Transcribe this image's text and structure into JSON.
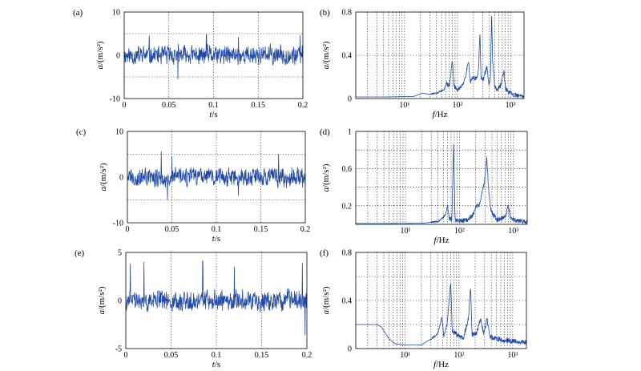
{
  "chart_data": [
    {
      "panel": "(a)",
      "type": "line",
      "xlabel_italic": "t",
      "xlabel_unit": "/s",
      "ylabel_italic": "a",
      "ylabel_unit": "/(m/s²)",
      "xlim": [
        0,
        0.2
      ],
      "ylim": [
        -10,
        10
      ],
      "xticks": [
        0,
        0.05,
        0.1,
        0.15,
        0.2
      ],
      "xtick_labels": [
        "0",
        "0.05",
        "0.1",
        "0.15",
        "0.2"
      ],
      "yticks": [
        -10,
        -5,
        0,
        5,
        10
      ],
      "ytick_labels": [
        "-10",
        "",
        "0",
        "",
        "10"
      ],
      "grid": true,
      "signal": {
        "n_samples": 600,
        "amplitude": 3.2,
        "peaks": [
          [
            0.028,
            4.5
          ],
          [
            0.06,
            -5.5
          ],
          [
            0.092,
            4.8
          ],
          [
            0.128,
            4.2
          ],
          [
            0.197,
            4.6
          ]
        ],
        "seed": 11
      }
    },
    {
      "panel": "(b)",
      "type": "line",
      "xscale": "log",
      "xlabel_italic": "f",
      "xlabel_unit": "/Hz",
      "ylabel_italic": "a",
      "ylabel_unit": "/(m/s²)",
      "xlim": [
        1.2,
        1800
      ],
      "ylim": [
        0,
        0.8
      ],
      "xticks": [
        10,
        100,
        1000
      ],
      "xtick_labels": [
        "10¹",
        "10²",
        "10³"
      ],
      "yticks": [
        0,
        0.4,
        0.8
      ],
      "ytick_labels": [
        "0",
        "0.4",
        "0.8"
      ],
      "grid": true,
      "spectrum": {
        "points": [
          [
            1.2,
            0.015
          ],
          [
            5,
            0.015
          ],
          [
            15,
            0.02
          ],
          [
            22,
            0.05
          ],
          [
            28,
            0.04
          ],
          [
            40,
            0.05
          ],
          [
            55,
            0.08
          ],
          [
            62,
            0.14
          ],
          [
            70,
            0.12
          ],
          [
            80,
            0.35
          ],
          [
            86,
            0.12
          ],
          [
            100,
            0.08
          ],
          [
            120,
            0.12
          ],
          [
            140,
            0.18
          ],
          [
            160,
            0.36
          ],
          [
            175,
            0.15
          ],
          [
            200,
            0.2
          ],
          [
            230,
            0.18
          ],
          [
            250,
            0.28
          ],
          [
            265,
            0.62
          ],
          [
            278,
            0.2
          ],
          [
            300,
            0.16
          ],
          [
            360,
            0.3
          ],
          [
            390,
            0.12
          ],
          [
            420,
            0.2
          ],
          [
            440,
            0.8
          ],
          [
            460,
            0.35
          ],
          [
            500,
            0.12
          ],
          [
            560,
            0.08
          ],
          [
            650,
            0.12
          ],
          [
            750,
            0.26
          ],
          [
            800,
            0.1
          ],
          [
            900,
            0.06
          ],
          [
            1000,
            0.05
          ],
          [
            1200,
            0.03
          ],
          [
            1800,
            0.02
          ]
        ],
        "noise": 0.02,
        "seed": 21
      }
    },
    {
      "panel": "(c)",
      "type": "line",
      "xlabel_italic": "t",
      "xlabel_unit": "/s",
      "ylabel_italic": "a",
      "ylabel_unit": "/(m/s²)",
      "xlim": [
        0,
        0.2
      ],
      "ylim": [
        -10,
        10
      ],
      "xticks": [
        0,
        0.05,
        0.1,
        0.15,
        0.2
      ],
      "xtick_labels": [
        "0",
        "0.05",
        "0.1",
        "0.15",
        "0.2"
      ],
      "yticks": [
        -10,
        -5,
        0,
        5,
        10
      ],
      "ytick_labels": [
        "-10",
        "",
        "0",
        "",
        "10"
      ],
      "grid": true,
      "signal": {
        "n_samples": 600,
        "amplitude": 3.0,
        "peaks": [
          [
            0.038,
            5.6
          ],
          [
            0.045,
            -5.0
          ],
          [
            0.05,
            4.5
          ],
          [
            0.125,
            -4.0
          ],
          [
            0.17,
            5.0
          ]
        ],
        "seed": 33
      }
    },
    {
      "panel": "(d)",
      "type": "line",
      "xscale": "log",
      "xlabel_italic": "f",
      "xlabel_unit": "/Hz",
      "ylabel_italic": "a",
      "ylabel_unit": "/(m/s²)",
      "xlim": [
        1.2,
        1800
      ],
      "ylim": [
        0,
        1
      ],
      "xticks": [
        10,
        100,
        1000
      ],
      "xtick_labels": [
        "10¹",
        "10²",
        "10³"
      ],
      "yticks": [
        0.2,
        0.6,
        1
      ],
      "ytick_labels": [
        "0.2",
        "0.6",
        "1"
      ],
      "extra_gridlines_y": [
        0.4,
        0.8
      ],
      "grid": true,
      "spectrum": {
        "points": [
          [
            1.2,
            0.01
          ],
          [
            5,
            0.01
          ],
          [
            20,
            0.012
          ],
          [
            28,
            0.02
          ],
          [
            40,
            0.03
          ],
          [
            55,
            0.1
          ],
          [
            60,
            0.2
          ],
          [
            65,
            0.06
          ],
          [
            72,
            0.05
          ],
          [
            78,
            0.84
          ],
          [
            83,
            0.05
          ],
          [
            100,
            0.03
          ],
          [
            140,
            0.05
          ],
          [
            180,
            0.1
          ],
          [
            200,
            0.2
          ],
          [
            230,
            0.2
          ],
          [
            260,
            0.32
          ],
          [
            290,
            0.45
          ],
          [
            320,
            0.72
          ],
          [
            345,
            0.4
          ],
          [
            380,
            0.15
          ],
          [
            430,
            0.1
          ],
          [
            500,
            0.05
          ],
          [
            700,
            0.08
          ],
          [
            800,
            0.2
          ],
          [
            880,
            0.08
          ],
          [
            1000,
            0.05
          ],
          [
            1800,
            0.02
          ]
        ],
        "noise": 0.025,
        "seed": 44
      }
    },
    {
      "panel": "(e)",
      "type": "line",
      "xlabel_italic": "t",
      "xlabel_unit": "/s",
      "ylabel_italic": "a",
      "ylabel_unit": "/(m/s²)",
      "xlim": [
        0,
        0.2
      ],
      "ylim": [
        -5,
        5
      ],
      "xticks": [
        0,
        0.05,
        0.1,
        0.15,
        0.2
      ],
      "xtick_labels": [
        "0",
        "0.05",
        "0.1",
        "0.15",
        "0.2"
      ],
      "yticks": [
        -5,
        0,
        5
      ],
      "ytick_labels": [
        "-5",
        "0",
        "5"
      ],
      "grid": true,
      "signal": {
        "n_samples": 600,
        "amplitude": 1.6,
        "peaks": [
          [
            0.005,
            3.8
          ],
          [
            0.02,
            4.0
          ],
          [
            0.085,
            4.1
          ],
          [
            0.12,
            3.5
          ],
          [
            0.198,
            -3.6
          ],
          [
            0.195,
            3.9
          ]
        ],
        "seed": 55
      }
    },
    {
      "panel": "(f)",
      "type": "line",
      "xscale": "log",
      "xlabel_italic": "f",
      "xlabel_unit": "/Hz",
      "ylabel_italic": "a",
      "ylabel_unit": "/(m/s²)",
      "xlim": [
        1.2,
        1800
      ],
      "ylim": [
        0,
        0.8
      ],
      "xticks": [
        10,
        100,
        1000
      ],
      "xtick_labels": [
        "10¹",
        "10²",
        "10³"
      ],
      "yticks": [
        0,
        0.4,
        0.8
      ],
      "ytick_labels": [
        "0",
        "0.4",
        "0.8"
      ],
      "extra_gridlines_y": [
        0.2,
        0.6
      ],
      "grid": true,
      "spectrum": {
        "points": [
          [
            1.2,
            0.2
          ],
          [
            3,
            0.2
          ],
          [
            3.6,
            0.18
          ],
          [
            5,
            0.08
          ],
          [
            6.5,
            0.04
          ],
          [
            10,
            0.03
          ],
          [
            20,
            0.03
          ],
          [
            30,
            0.08
          ],
          [
            40,
            0.12
          ],
          [
            48,
            0.26
          ],
          [
            52,
            0.1
          ],
          [
            60,
            0.2
          ],
          [
            70,
            0.55
          ],
          [
            75,
            0.15
          ],
          [
            90,
            0.12
          ],
          [
            120,
            0.08
          ],
          [
            150,
            0.25
          ],
          [
            165,
            0.52
          ],
          [
            175,
            0.12
          ],
          [
            210,
            0.12
          ],
          [
            250,
            0.25
          ],
          [
            290,
            0.12
          ],
          [
            330,
            0.25
          ],
          [
            380,
            0.1
          ],
          [
            500,
            0.08
          ],
          [
            700,
            0.07
          ],
          [
            1000,
            0.06
          ],
          [
            1800,
            0.05
          ]
        ],
        "noise": 0.02,
        "seed": 66
      }
    }
  ]
}
